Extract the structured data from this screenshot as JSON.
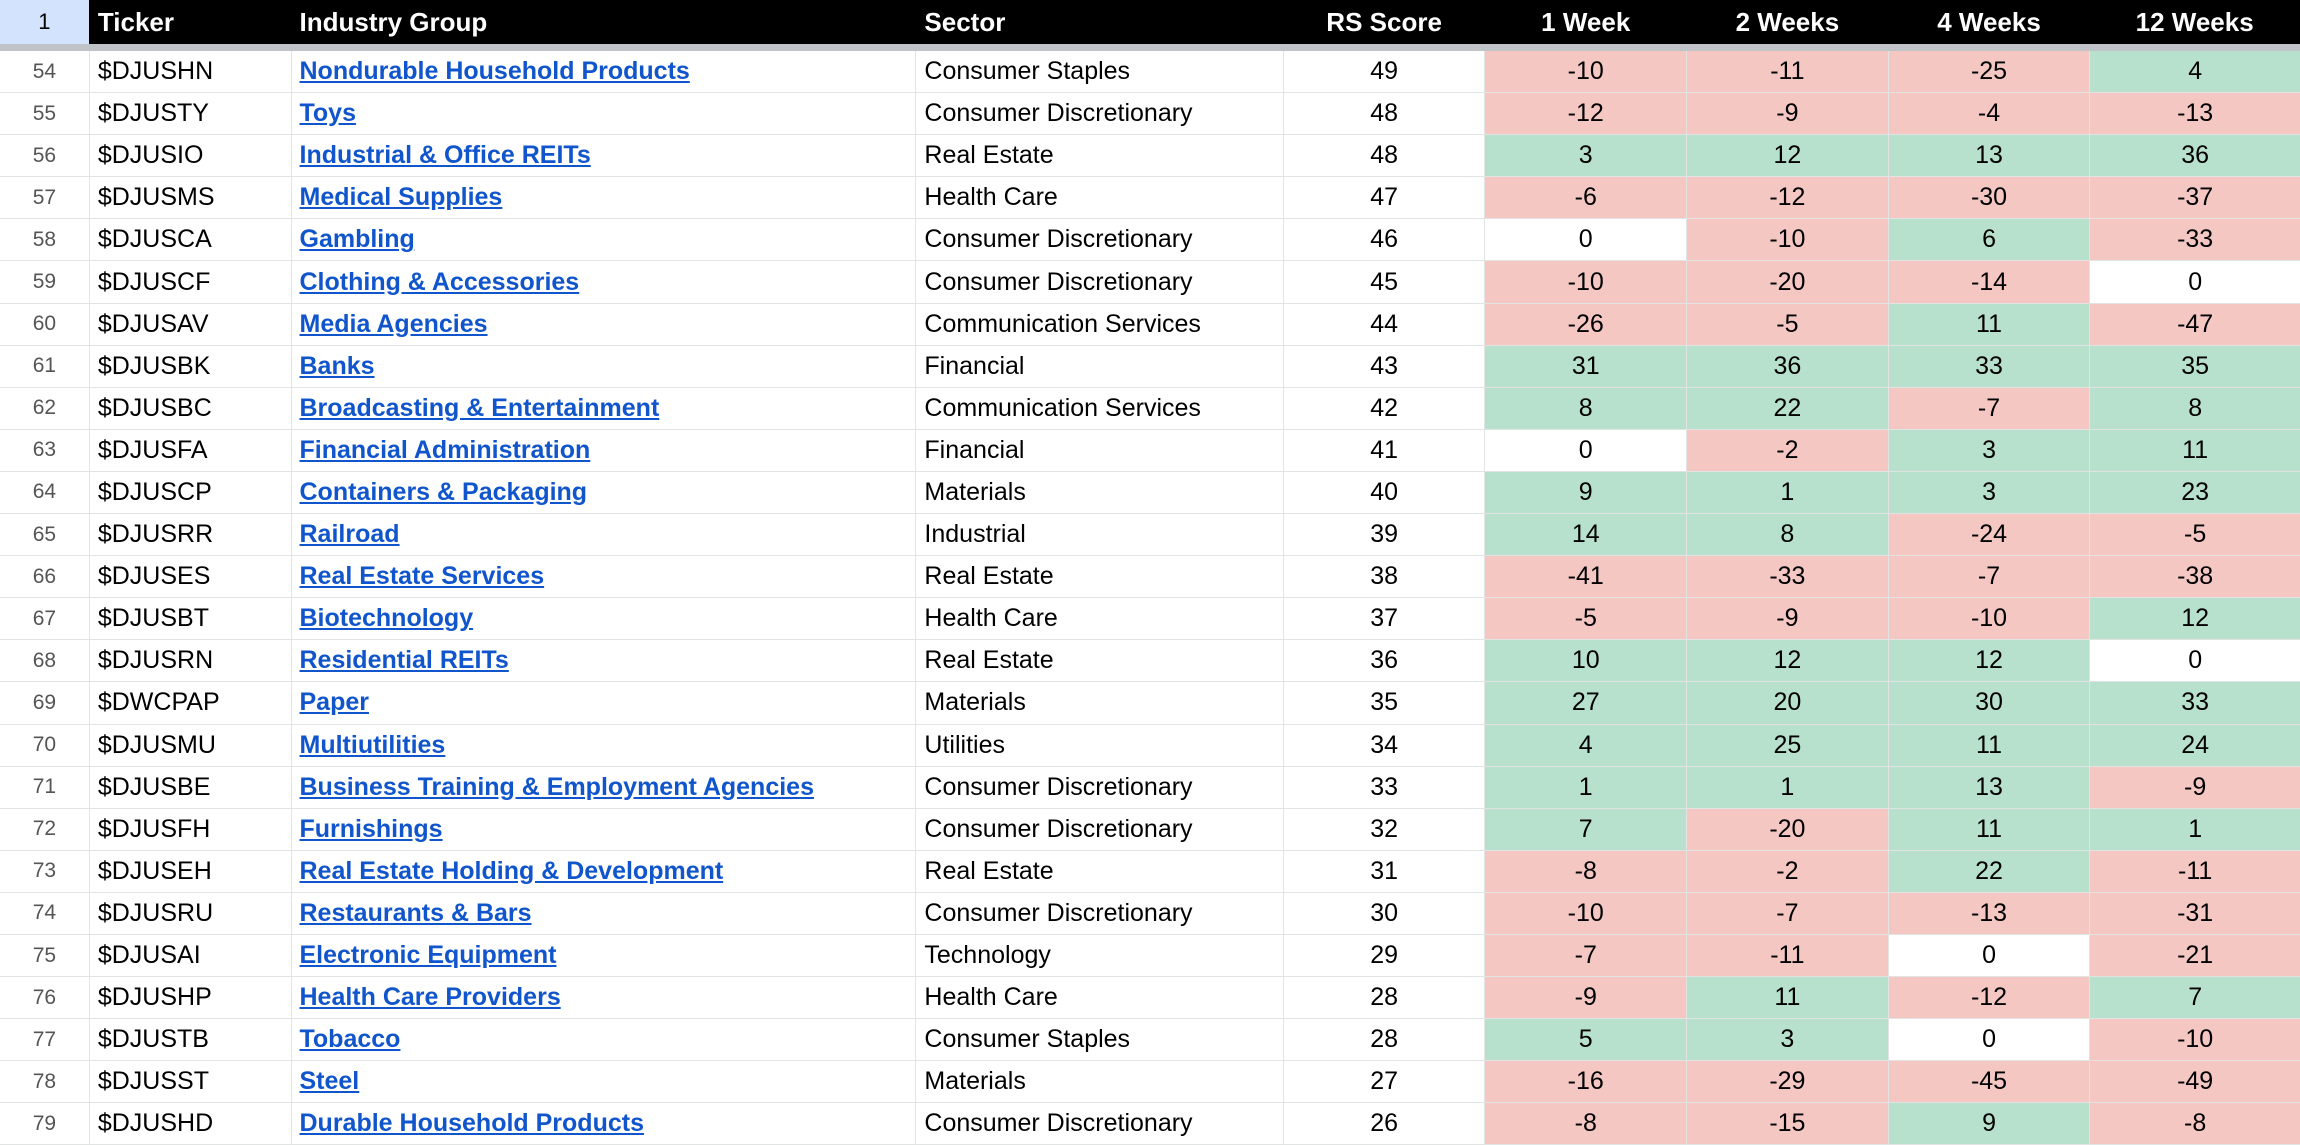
{
  "header": {
    "row_number": "1",
    "ticker": "Ticker",
    "industry_group": "Industry Group",
    "sector": "Sector",
    "rs_score": "RS Score",
    "w1": "1 Week",
    "w2": "2 Weeks",
    "w4": "4 Weeks",
    "w12": "12 Weeks"
  },
  "colors": {
    "positive": "#b7e1cd",
    "negative": "#f4c7c3",
    "neutral": "#ffffff",
    "link": "#1155cc"
  },
  "rows": [
    {
      "n": "54",
      "ticker": "$DJUSHN",
      "group": "Nondurable Household Products",
      "sector": "Consumer Staples",
      "rs": "49",
      "w1": "-10",
      "w2": "-11",
      "w4": "-25",
      "w12": "4"
    },
    {
      "n": "55",
      "ticker": "$DJUSTY",
      "group": "Toys",
      "sector": "Consumer Discretionary",
      "rs": "48",
      "w1": "-12",
      "w2": "-9",
      "w4": "-4",
      "w12": "-13"
    },
    {
      "n": "56",
      "ticker": "$DJUSIO",
      "group": "Industrial & Office REITs",
      "sector": "Real Estate",
      "rs": "48",
      "w1": "3",
      "w2": "12",
      "w4": "13",
      "w12": "36"
    },
    {
      "n": "57",
      "ticker": "$DJUSMS",
      "group": "Medical Supplies",
      "sector": "Health Care",
      "rs": "47",
      "w1": "-6",
      "w2": "-12",
      "w4": "-30",
      "w12": "-37"
    },
    {
      "n": "58",
      "ticker": "$DJUSCA",
      "group": "Gambling",
      "sector": "Consumer Discretionary",
      "rs": "46",
      "w1": "0",
      "w2": "-10",
      "w4": "6",
      "w12": "-33"
    },
    {
      "n": "59",
      "ticker": "$DJUSCF",
      "group": "Clothing & Accessories",
      "sector": "Consumer Discretionary",
      "rs": "45",
      "w1": "-10",
      "w2": "-20",
      "w4": "-14",
      "w12": "0"
    },
    {
      "n": "60",
      "ticker": "$DJUSAV",
      "group": "Media Agencies",
      "sector": "Communication Services",
      "rs": "44",
      "w1": "-26",
      "w2": "-5",
      "w4": "11",
      "w12": "-47"
    },
    {
      "n": "61",
      "ticker": "$DJUSBK",
      "group": "Banks",
      "sector": "Financial",
      "rs": "43",
      "w1": "31",
      "w2": "36",
      "w4": "33",
      "w12": "35"
    },
    {
      "n": "62",
      "ticker": "$DJUSBC",
      "group": "Broadcasting & Entertainment",
      "sector": "Communication Services",
      "rs": "42",
      "w1": "8",
      "w2": "22",
      "w4": "-7",
      "w12": "8"
    },
    {
      "n": "63",
      "ticker": "$DJUSFA",
      "group": "Financial Administration",
      "sector": "Financial",
      "rs": "41",
      "w1": "0",
      "w2": "-2",
      "w4": "3",
      "w12": "11"
    },
    {
      "n": "64",
      "ticker": "$DJUSCP",
      "group": "Containers & Packaging",
      "sector": "Materials",
      "rs": "40",
      "w1": "9",
      "w2": "1",
      "w4": "3",
      "w12": "23"
    },
    {
      "n": "65",
      "ticker": "$DJUSRR",
      "group": "Railroad",
      "sector": "Industrial",
      "rs": "39",
      "w1": "14",
      "w2": "8",
      "w4": "-24",
      "w12": "-5"
    },
    {
      "n": "66",
      "ticker": "$DJUSES",
      "group": "Real Estate Services",
      "sector": "Real Estate",
      "rs": "38",
      "w1": "-41",
      "w2": "-33",
      "w4": "-7",
      "w12": "-38"
    },
    {
      "n": "67",
      "ticker": "$DJUSBT",
      "group": "Biotechnology",
      "sector": "Health Care",
      "rs": "37",
      "w1": "-5",
      "w2": "-9",
      "w4": "-10",
      "w12": "12"
    },
    {
      "n": "68",
      "ticker": "$DJUSRN",
      "group": "Residential REITs",
      "sector": "Real Estate",
      "rs": "36",
      "w1": "10",
      "w2": "12",
      "w4": "12",
      "w12": "0"
    },
    {
      "n": "69",
      "ticker": "$DWCPAP",
      "group": "Paper",
      "sector": "Materials",
      "rs": "35",
      "w1": "27",
      "w2": "20",
      "w4": "30",
      "w12": "33"
    },
    {
      "n": "70",
      "ticker": "$DJUSMU",
      "group": "Multiutilities",
      "sector": "Utilities",
      "rs": "34",
      "w1": "4",
      "w2": "25",
      "w4": "11",
      "w12": "24"
    },
    {
      "n": "71",
      "ticker": "$DJUSBE",
      "group": "Business Training & Employment Agencies",
      "sector": "Consumer Discretionary",
      "rs": "33",
      "w1": "1",
      "w2": "1",
      "w4": "13",
      "w12": "-9"
    },
    {
      "n": "72",
      "ticker": "$DJUSFH",
      "group": "Furnishings",
      "sector": "Consumer Discretionary",
      "rs": "32",
      "w1": "7",
      "w2": "-20",
      "w4": "11",
      "w12": "1"
    },
    {
      "n": "73",
      "ticker": "$DJUSEH",
      "group": "Real Estate Holding & Development",
      "sector": "Real Estate",
      "rs": "31",
      "w1": "-8",
      "w2": "-2",
      "w4": "22",
      "w12": "-11"
    },
    {
      "n": "74",
      "ticker": "$DJUSRU",
      "group": "Restaurants & Bars",
      "sector": "Consumer Discretionary",
      "rs": "30",
      "w1": "-10",
      "w2": "-7",
      "w4": "-13",
      "w12": "-31"
    },
    {
      "n": "75",
      "ticker": "$DJUSAI",
      "group": "Electronic Equipment",
      "sector": "Technology",
      "rs": "29",
      "w1": "-7",
      "w2": "-11",
      "w4": "0",
      "w12": "-21"
    },
    {
      "n": "76",
      "ticker": "$DJUSHP",
      "group": "Health Care Providers",
      "sector": "Health Care",
      "rs": "28",
      "w1": "-9",
      "w2": "11",
      "w4": "-12",
      "w12": "7"
    },
    {
      "n": "77",
      "ticker": "$DJUSTB",
      "group": "Tobacco",
      "sector": "Consumer Staples",
      "rs": "28",
      "w1": "5",
      "w2": "3",
      "w4": "0",
      "w12": "-10"
    },
    {
      "n": "78",
      "ticker": "$DJUSST",
      "group": "Steel",
      "sector": "Materials",
      "rs": "27",
      "w1": "-16",
      "w2": "-29",
      "w4": "-45",
      "w12": "-49"
    },
    {
      "n": "79",
      "ticker": "$DJUSHD",
      "group": "Durable Household Products",
      "sector": "Consumer Discretionary",
      "rs": "26",
      "w1": "-8",
      "w2": "-15",
      "w4": "9",
      "w12": "-8"
    }
  ]
}
